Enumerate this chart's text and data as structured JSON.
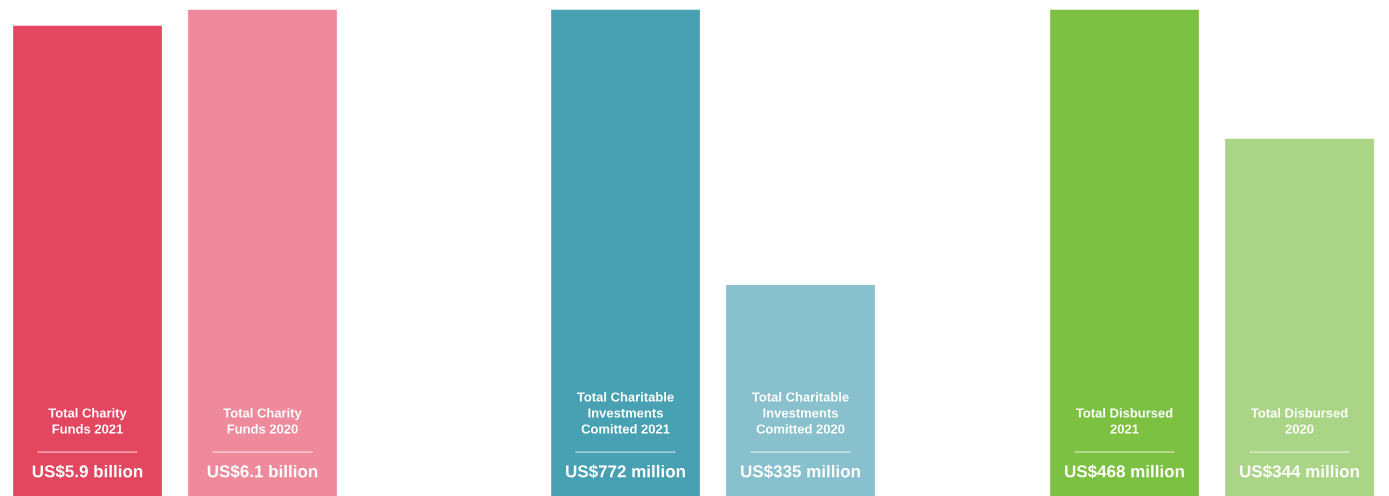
{
  "chart_data": [
    {
      "type": "bar",
      "categories": [
        "Total Charity Funds 2021",
        "Total Charity Funds 2020"
      ],
      "values": [
        5900000000,
        6100000000
      ],
      "colors": [
        "#e3465f",
        "#ee8a9b"
      ],
      "value_labels": [
        "US$5.9 billion",
        "US$6.1 billion"
      ]
    },
    {
      "type": "bar",
      "categories": [
        "Total Charitable Investments Comitted 2021",
        "Total Charitable Investments Comitted 2020"
      ],
      "values": [
        772000000,
        335000000
      ],
      "colors": [
        "#48a1b2",
        "#88c1cd"
      ],
      "value_labels": [
        "US$772 million",
        "US$335 million"
      ]
    },
    {
      "type": "bar",
      "categories": [
        "Total Disbursed 2021",
        "Total Disbursed 2020"
      ],
      "values": [
        468000000,
        344000000
      ],
      "colors": [
        "#7cc142",
        "#aad586"
      ],
      "value_labels": [
        "US$468 million",
        "US$344 million"
      ]
    }
  ]
}
